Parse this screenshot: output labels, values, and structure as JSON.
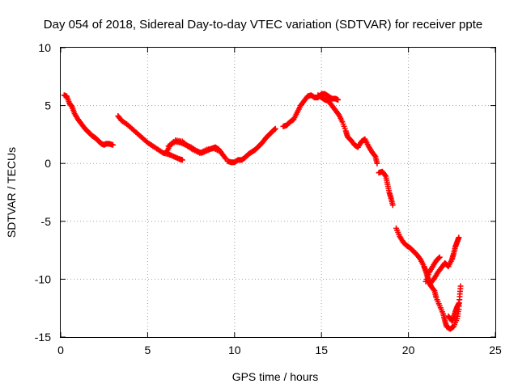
{
  "chart_data": {
    "type": "scatter",
    "title": "Day 054 of 2018, Sidereal Day-to-day VTEC variation (SDTVAR) for receiver ppte",
    "xlabel": "GPS time / hours",
    "ylabel": "SDTVAR / TECUs",
    "xlim": [
      0,
      25
    ],
    "ylim": [
      -15,
      10
    ],
    "x_ticks": [
      0,
      5,
      10,
      15,
      20,
      25
    ],
    "y_ticks": [
      -15,
      -10,
      -5,
      0,
      5,
      10
    ],
    "grid": true,
    "legend": "none",
    "marker": "+",
    "color": "#ff0000",
    "series": [
      {
        "segments": [
          [
            [
              0.2,
              5.9
            ],
            [
              0.35,
              5.8
            ],
            [
              0.5,
              5.2
            ],
            [
              0.65,
              4.9
            ],
            [
              0.8,
              4.3
            ],
            [
              1.0,
              3.8
            ],
            [
              1.2,
              3.4
            ],
            [
              1.4,
              3.0
            ],
            [
              1.6,
              2.7
            ],
            [
              1.8,
              2.4
            ],
            [
              2.0,
              2.2
            ],
            [
              2.2,
              1.9
            ],
            [
              2.35,
              1.7
            ],
            [
              2.5,
              1.6
            ],
            [
              2.6,
              1.7
            ],
            [
              2.8,
              1.7
            ],
            [
              3.0,
              1.6
            ]
          ],
          [
            [
              3.3,
              4.1
            ],
            [
              3.5,
              3.7
            ],
            [
              3.8,
              3.4
            ],
            [
              4.1,
              3.0
            ],
            [
              4.4,
              2.6
            ],
            [
              4.7,
              2.2
            ],
            [
              5.0,
              1.8
            ],
            [
              5.3,
              1.5
            ],
            [
              5.6,
              1.2
            ],
            [
              5.9,
              0.9
            ],
            [
              6.2,
              0.8
            ],
            [
              6.5,
              0.6
            ],
            [
              6.8,
              0.4
            ],
            [
              7.0,
              0.3
            ]
          ],
          [
            [
              6.1,
              1.0
            ],
            [
              6.3,
              1.6
            ],
            [
              6.6,
              1.9
            ],
            [
              6.9,
              1.8
            ],
            [
              7.2,
              1.6
            ],
            [
              7.5,
              1.4
            ],
            [
              7.8,
              1.1
            ],
            [
              8.1,
              0.9
            ],
            [
              8.4,
              1.1
            ],
            [
              8.7,
              1.3
            ],
            [
              8.9,
              1.4
            ],
            [
              9.1,
              1.2
            ],
            [
              9.3,
              0.8
            ],
            [
              9.5,
              0.4
            ]
          ],
          [
            [
              6.2,
              1.5
            ],
            [
              6.6,
              2.0
            ],
            [
              7.0,
              1.9
            ],
            [
              7.3,
              1.5
            ],
            [
              7.6,
              1.2
            ],
            [
              8.0,
              0.9
            ],
            [
              8.4,
              1.2
            ],
            [
              8.8,
              1.3
            ],
            [
              9.2,
              1.0
            ]
          ],
          [
            [
              9.6,
              0.2
            ],
            [
              9.8,
              0.1
            ],
            [
              10.0,
              0.1
            ],
            [
              10.2,
              0.3
            ],
            [
              10.4,
              0.3
            ],
            [
              10.6,
              0.5
            ],
            [
              10.8,
              0.8
            ],
            [
              11.0,
              1.0
            ],
            [
              11.2,
              1.2
            ],
            [
              11.4,
              1.5
            ],
            [
              11.6,
              1.8
            ],
            [
              11.8,
              2.2
            ],
            [
              12.0,
              2.5
            ],
            [
              12.2,
              2.8
            ],
            [
              12.35,
              3.0
            ]
          ],
          [
            [
              12.8,
              3.2
            ],
            [
              13.0,
              3.3
            ],
            [
              13.2,
              3.6
            ],
            [
              13.4,
              3.8
            ],
            [
              13.6,
              4.4
            ],
            [
              13.8,
              5.0
            ],
            [
              14.0,
              5.4
            ],
            [
              14.2,
              5.8
            ],
            [
              14.4,
              5.9
            ],
            [
              14.6,
              5.7
            ],
            [
              14.8,
              5.7
            ],
            [
              15.0,
              6.0
            ],
            [
              15.2,
              6.0
            ],
            [
              15.4,
              5.8
            ],
            [
              15.6,
              5.6
            ],
            [
              15.8,
              5.6
            ],
            [
              15.95,
              5.5
            ]
          ],
          [
            [
              14.8,
              5.9
            ],
            [
              15.0,
              5.7
            ],
            [
              15.2,
              5.5
            ],
            [
              15.4,
              5.4
            ],
            [
              15.6,
              5.0
            ],
            [
              15.8,
              4.6
            ],
            [
              16.0,
              4.2
            ],
            [
              16.2,
              3.6
            ],
            [
              16.4,
              2.8
            ],
            [
              16.5,
              2.3
            ],
            [
              16.7,
              2.0
            ],
            [
              16.9,
              1.6
            ],
            [
              17.1,
              1.4
            ],
            [
              17.3,
              1.9
            ],
            [
              17.5,
              2.1
            ],
            [
              17.7,
              1.5
            ],
            [
              17.9,
              1.0
            ],
            [
              18.1,
              0.6
            ],
            [
              18.2,
              0.0
            ]
          ],
          [
            [
              18.3,
              -0.8
            ],
            [
              18.5,
              -0.7
            ],
            [
              18.7,
              -1.1
            ],
            [
              18.8,
              -1.8
            ],
            [
              18.9,
              -2.5
            ],
            [
              19.0,
              -3.0
            ],
            [
              19.1,
              -3.6
            ]
          ],
          [
            [
              19.3,
              -5.6
            ],
            [
              19.5,
              -6.3
            ],
            [
              19.7,
              -6.8
            ],
            [
              19.9,
              -7.1
            ],
            [
              20.1,
              -7.3
            ],
            [
              20.3,
              -7.6
            ],
            [
              20.5,
              -7.9
            ],
            [
              20.7,
              -8.3
            ],
            [
              20.9,
              -8.9
            ],
            [
              21.0,
              -9.3
            ],
            [
              21.1,
              -9.8
            ],
            [
              21.2,
              -10.3
            ],
            [
              21.3,
              -10.6
            ],
            [
              21.5,
              -11.0
            ],
            [
              21.6,
              -11.6
            ],
            [
              21.8,
              -12.3
            ],
            [
              22.0,
              -13.0
            ],
            [
              22.1,
              -13.6
            ],
            [
              22.2,
              -14.1
            ],
            [
              22.4,
              -14.3
            ],
            [
              22.6,
              -14.1
            ],
            [
              22.8,
              -13.4
            ],
            [
              22.9,
              -12.6
            ],
            [
              22.95,
              -11.5
            ],
            [
              23.0,
              -10.6
            ]
          ],
          [
            [
              21.0,
              -10.2
            ],
            [
              21.2,
              -9.4
            ],
            [
              21.4,
              -8.9
            ],
            [
              21.6,
              -8.4
            ],
            [
              21.8,
              -8.1
            ]
          ],
          [
            [
              21.3,
              -10.3
            ],
            [
              21.5,
              -9.9
            ],
            [
              21.7,
              -9.4
            ],
            [
              21.9,
              -9.0
            ],
            [
              22.1,
              -8.6
            ],
            [
              22.3,
              -8.9
            ],
            [
              22.5,
              -8.3
            ],
            [
              22.6,
              -7.8
            ],
            [
              22.7,
              -7.2
            ],
            [
              22.8,
              -6.8
            ],
            [
              22.9,
              -6.4
            ]
          ],
          [
            [
              22.3,
              -13.2
            ],
            [
              22.5,
              -13.6
            ],
            [
              22.6,
              -13.3
            ],
            [
              22.7,
              -12.8
            ],
            [
              22.8,
              -12.4
            ],
            [
              22.9,
              -12.1
            ]
          ]
        ]
      }
    ]
  }
}
